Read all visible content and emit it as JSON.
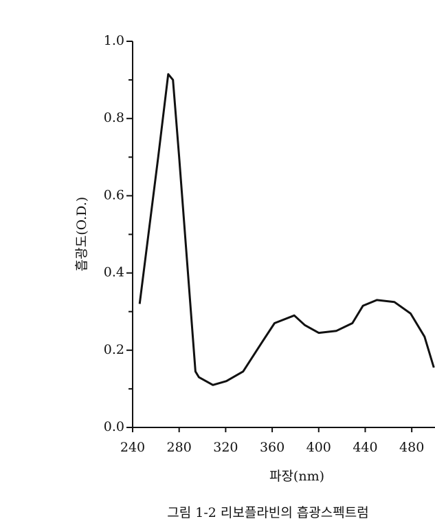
{
  "chart_data": {
    "type": "line",
    "caption": "그림 1-2  리보플라빈의 흡광스펙트럼",
    "x_label": "파장(nm)",
    "y_label": "흡광도(O.D.)",
    "x": [
      246,
      262,
      270.6,
      274.7,
      280,
      294,
      297,
      309,
      320.6,
      335,
      350,
      362,
      379,
      388,
      400,
      415,
      429,
      438,
      450,
      465,
      479,
      491,
      499
    ],
    "values": [
      0.32,
      0.7,
      0.915,
      0.9,
      0.7,
      0.145,
      0.13,
      0.11,
      0.12,
      0.145,
      0.215,
      0.27,
      0.29,
      0.265,
      0.245,
      0.25,
      0.27,
      0.315,
      0.33,
      0.325,
      0.295,
      0.235,
      0.155
    ],
    "color": "#111111",
    "xlim": [
      240,
      500
    ],
    "ylim": [
      0,
      1
    ],
    "xticks": [
      240,
      280,
      320,
      360,
      400,
      440,
      480
    ],
    "yticks": [
      {
        "value": 0,
        "label": "0.0"
      },
      0.2,
      0.4,
      0.6,
      0.8,
      {
        "value": 1,
        "label": "1.0"
      }
    ],
    "yminorticks": [
      0.1,
      0.3,
      0.5,
      0.7,
      0.9
    ]
  }
}
